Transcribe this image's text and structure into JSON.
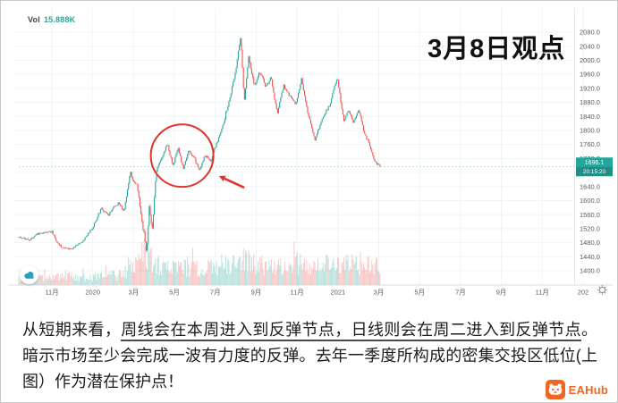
{
  "chart_data": {
    "type": "candlestick",
    "title": "3月8日观点",
    "indicator_label": "Vol",
    "indicator_value": "15.888K",
    "last_price": 1696.1,
    "last_price_label": "1696.1",
    "countdown": "20:15:20",
    "y_axis_ticks": [
      "2080.0",
      "2040.0",
      "2000.0",
      "1960.0",
      "1920.0",
      "1880.0",
      "1840.0",
      "1800.0",
      "1760.0",
      "1720.0",
      "1680.0",
      "1640.0",
      "1600.0",
      "1560.0",
      "1520.0",
      "1480.0",
      "1440.0",
      "1400.0"
    ],
    "y_tick_top_value": 2080,
    "y_tick_step": 40,
    "ylim": [
      1360,
      2145
    ],
    "x_axis_ticks": [
      "11月",
      "2020",
      "3月",
      "5月",
      "7月",
      "9月",
      "11月",
      "2021",
      "3月",
      "5月",
      "7月",
      "9月",
      "11月",
      "202"
    ],
    "grid": true,
    "colors": {
      "up": "#26a69a",
      "down": "#ef5350",
      "vol_up": "rgba(38,166,154,0.35)",
      "vol_down": "rgba(239,83,80,0.35)",
      "annotation": "#e0352b",
      "grid": "#f0f3f5",
      "axis_text": "#565a64",
      "tag_bg": "#26a69a",
      "tag_text": "#ffffff"
    },
    "price_path": [
      [
        0.0,
        1496
      ],
      [
        0.03,
        1488
      ],
      [
        0.05,
        1505
      ],
      [
        0.092,
        1512
      ],
      [
        0.105,
        1482
      ],
      [
        0.119,
        1468
      ],
      [
        0.144,
        1462
      ],
      [
        0.16,
        1472
      ],
      [
        0.173,
        1478
      ],
      [
        0.205,
        1524
      ],
      [
        0.228,
        1578
      ],
      [
        0.248,
        1556
      ],
      [
        0.262,
        1582
      ],
      [
        0.275,
        1592
      ],
      [
        0.292,
        1572
      ],
      [
        0.309,
        1682
      ],
      [
        0.32,
        1648
      ],
      [
        0.327,
        1642
      ],
      [
        0.339,
        1560
      ],
      [
        0.354,
        1452
      ],
      [
        0.361,
        1588
      ],
      [
        0.369,
        1520
      ],
      [
        0.381,
        1688
      ],
      [
        0.396,
        1722
      ],
      [
        0.411,
        1764
      ],
      [
        0.426,
        1700
      ],
      [
        0.441,
        1748
      ],
      [
        0.455,
        1692
      ],
      [
        0.47,
        1738
      ],
      [
        0.485,
        1722
      ],
      [
        0.5,
        1688
      ],
      [
        0.515,
        1732
      ],
      [
        0.53,
        1712
      ],
      [
        0.545,
        1756
      ],
      [
        0.564,
        1812
      ],
      [
        0.584,
        1892
      ],
      [
        0.599,
        1962
      ],
      [
        0.614,
        2072
      ],
      [
        0.624,
        1878
      ],
      [
        0.636,
        2012
      ],
      [
        0.651,
        1928
      ],
      [
        0.668,
        1968
      ],
      [
        0.683,
        1922
      ],
      [
        0.698,
        1952
      ],
      [
        0.715,
        1848
      ],
      [
        0.733,
        1928
      ],
      [
        0.75,
        1898
      ],
      [
        0.767,
        1872
      ],
      [
        0.782,
        1948
      ],
      [
        0.8,
        1848
      ],
      [
        0.819,
        1772
      ],
      [
        0.842,
        1838
      ],
      [
        0.861,
        1875
      ],
      [
        0.881,
        1952
      ],
      [
        0.899,
        1828
      ],
      [
        0.913,
        1858
      ],
      [
        0.926,
        1822
      ],
      [
        0.941,
        1862
      ],
      [
        0.955,
        1796
      ],
      [
        0.97,
        1762
      ],
      [
        0.985,
        1712
      ],
      [
        1.0,
        1696
      ]
    ],
    "noise_amp": [
      [
        0.0,
        5
      ],
      [
        0.28,
        6
      ],
      [
        0.32,
        9
      ],
      [
        0.345,
        15
      ],
      [
        0.375,
        16
      ],
      [
        0.39,
        8
      ],
      [
        0.45,
        8
      ],
      [
        0.54,
        8
      ],
      [
        0.6,
        9
      ],
      [
        0.63,
        10
      ],
      [
        0.7,
        8
      ],
      [
        0.8,
        7
      ],
      [
        0.9,
        7
      ],
      [
        1.0,
        6
      ]
    ],
    "volume_envelope": [
      [
        0.0,
        9
      ],
      [
        0.1,
        11
      ],
      [
        0.13,
        16
      ],
      [
        0.15,
        12
      ],
      [
        0.2,
        11
      ],
      [
        0.28,
        16
      ],
      [
        0.32,
        26
      ],
      [
        0.345,
        48
      ],
      [
        0.36,
        42
      ],
      [
        0.38,
        30
      ],
      [
        0.42,
        24
      ],
      [
        0.48,
        26
      ],
      [
        0.52,
        24
      ],
      [
        0.56,
        30
      ],
      [
        0.6,
        34
      ],
      [
        0.63,
        40
      ],
      [
        0.66,
        30
      ],
      [
        0.7,
        26
      ],
      [
        0.74,
        30
      ],
      [
        0.78,
        32
      ],
      [
        0.82,
        28
      ],
      [
        0.86,
        30
      ],
      [
        0.9,
        30
      ],
      [
        0.94,
        34
      ],
      [
        0.97,
        30
      ],
      [
        1.0,
        26
      ]
    ],
    "annotations": {
      "ellipse": {
        "center_f": 0.452,
        "center_price": 1728,
        "radius_f": 0.0866,
        "radius_price": 89
      },
      "arrow": {
        "tail_f": 0.624,
        "tail_price": 1637,
        "head_f": 0.554,
        "head_price": 1670
      }
    }
  },
  "caption": {
    "segments": [
      {
        "text": "从短期来看，",
        "underline": false
      },
      {
        "text": "周线会在本周进入到反弹节点，日线则会在周二进入到反弹节点",
        "underline": true
      },
      {
        "text": "。暗示市场至少会完成一波有力度的反弹。去年一季度所构成的密集交投区低位(上图）作为潜在保护点！",
        "underline": false
      }
    ]
  },
  "logo": {
    "text": "EAHub"
  }
}
